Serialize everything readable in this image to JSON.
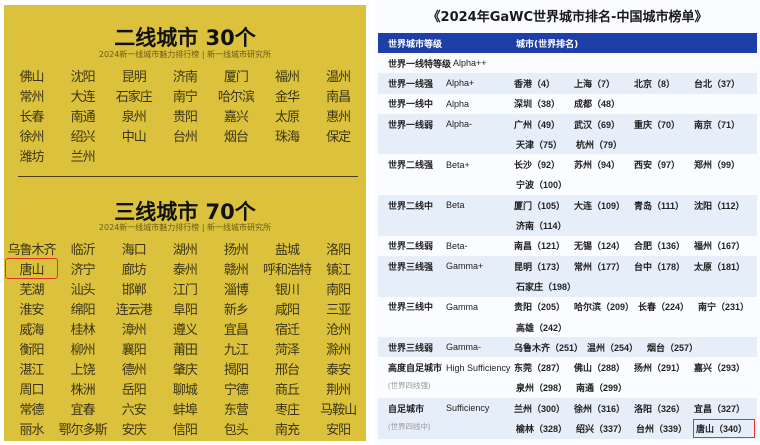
{
  "left": {
    "section1": {
      "title": "二线城市  30个",
      "subtitle": "2024新一线城市魅力排行榜 | 新一线城市研究所",
      "cities": [
        "佛山",
        "沈阳",
        "昆明",
        "济南",
        "厦门",
        "福州",
        "温州",
        "常州",
        "大连",
        "石家庄",
        "南宁",
        "哈尔滨",
        "金华",
        "南昌",
        "长春",
        "南通",
        "泉州",
        "贵阳",
        "嘉兴",
        "太原",
        "惠州",
        "徐州",
        "绍兴",
        "中山",
        "台州",
        "烟台",
        "珠海",
        "保定",
        "潍坊",
        "兰州"
      ]
    },
    "section2": {
      "title": "三线城市  70个",
      "subtitle": "2024新一线城市魅力排行榜 | 新一线城市研究所",
      "cities": [
        "乌鲁木齐",
        "临沂",
        "海口",
        "湖州",
        "扬州",
        "盐城",
        "洛阳",
        "唐山",
        "济宁",
        "廊坊",
        "泰州",
        "赣州",
        "呼和浩特",
        "镇江",
        "芜湖",
        "汕头",
        "邯郸",
        "江门",
        "淄博",
        "银川",
        "南阳",
        "淮安",
        "绵阳",
        "连云港",
        "阜阳",
        "新乡",
        "咸阳",
        "三亚",
        "威海",
        "桂林",
        "漳州",
        "遵义",
        "宜昌",
        "宿迁",
        "沧州",
        "衡阳",
        "柳州",
        "襄阳",
        "莆田",
        "九江",
        "菏泽",
        "滁州",
        "湛江",
        "上饶",
        "德州",
        "肇庆",
        "揭阳",
        "邢台",
        "泰安",
        "周口",
        "株洲",
        "岳阳",
        "聊城",
        "宁德",
        "商丘",
        "荆州",
        "常德",
        "宜春",
        "六安",
        "蚌埠",
        "东营",
        "枣庄",
        "马鞍山",
        "丽水",
        "鄂尔多斯",
        "安庆",
        "信阳",
        "包头",
        "南充",
        "安阳"
      ],
      "highlighted": "唐山"
    },
    "highlight_color": "#e3342b"
  },
  "right": {
    "title": "《2024年GaWC世界城市排名-中国城市榜单》",
    "header": {
      "level": "世界城市等级",
      "cities": "城市(世界排名)"
    },
    "header_color": "#1f3fa8",
    "groups": [
      {
        "level": "世界一线特等级",
        "code": "Alpha++",
        "cities": []
      },
      {
        "level": "世界一线强",
        "code": "Alpha+",
        "cities": [
          "香港（4）",
          "上海（7）",
          "北京（8）",
          "台北（37）"
        ]
      },
      {
        "level": "世界一线中",
        "code": "Alpha",
        "cities": [
          "深圳（38）",
          "成都（48）"
        ]
      },
      {
        "level": "世界一线弱",
        "code": "Alpha-",
        "cities": [
          "广州（49）",
          "武汉（69）",
          "重庆（70）",
          "南京（71）",
          "天津（75）",
          "杭州（79）"
        ]
      },
      {
        "level": "世界二线强",
        "code": "Beta+",
        "cities": [
          "长沙（92）",
          "苏州（94）",
          "西安（97）",
          "郑州（99）",
          "宁波（100）"
        ]
      },
      {
        "level": "世界二线中",
        "code": "Beta",
        "cities": [
          "厦门（105）",
          "大连（109）",
          "青岛（111）",
          "沈阳（112）",
          "济南（114）"
        ]
      },
      {
        "level": "世界二线弱",
        "code": "Beta-",
        "cities": [
          "南昌（121）",
          "无锡（124）",
          "合肥（136）",
          "福州（167）"
        ]
      },
      {
        "level": "世界三线强",
        "code": "Gamma+",
        "cities": [
          "昆明（173）",
          "常州（177）",
          "台中（178）",
          "太原（181）",
          "石家庄（198）"
        ]
      },
      {
        "level": "世界三线中",
        "code": "Gamma",
        "cities": [
          "贵阳（205）",
          "哈尔滨（209）",
          "长春（224）",
          "南宁（231）",
          "高雄（242）"
        ]
      },
      {
        "level": "世界三线弱",
        "code": "Gamma-",
        "cities": [
          "乌鲁木齐（251）",
          "温州（254）",
          "烟台（257）"
        ]
      },
      {
        "level": "高度自足城市",
        "sub": "(世界四线强)",
        "code": "High Sufficiency",
        "cities": [
          "东莞（287）",
          "佛山（288）",
          "扬州（291）",
          "嘉兴（293）",
          "泉州（298）",
          "南通（299）"
        ]
      },
      {
        "level": "自足城市",
        "sub": "(世界四线中)",
        "code": "Sufficiency",
        "cities": [
          "兰州（300）",
          "徐州（316）",
          "洛阳（326）",
          "宜昌（327）",
          "榆林（328）",
          "绍兴（337）",
          "台州（339）",
          "唐山（340）"
        ]
      }
    ],
    "highlighted": "唐山（340）"
  }
}
